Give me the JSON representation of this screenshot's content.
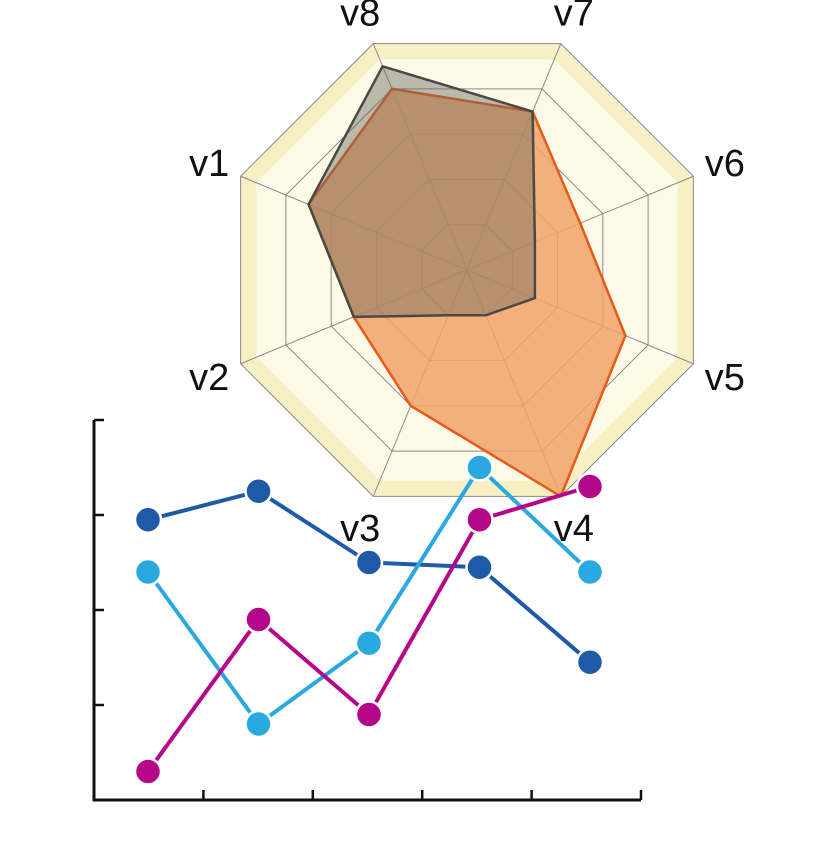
{
  "chart_data": [
    {
      "type": "radar",
      "axes": [
        "v1",
        "v2",
        "v3",
        "v4",
        "v5",
        "v6",
        "v7",
        "v8"
      ],
      "rmax": 5,
      "rings": 5,
      "grid": true,
      "colors": {
        "grid_line": "#8a8a8a",
        "band_fill": "#fdfbe8",
        "band_edge": "#f7f0c4"
      },
      "series": [
        {
          "values": [
            3.5,
            2.5,
            3.0,
            5.0,
            3.5,
            2.5,
            3.5,
            4.0
          ],
          "fill": "#f2a268",
          "stroke": "#e65a1a",
          "fill_opacity": 0.85
        },
        {
          "values": [
            3.5,
            2.5,
            1.0,
            1.0,
            1.5,
            1.5,
            3.5,
            4.5
          ],
          "fill": "#6b6b60",
          "stroke": "#4a4a44",
          "fill_opacity": 0.45
        }
      ]
    },
    {
      "type": "line",
      "x": [
        1,
        2,
        3,
        4,
        5
      ],
      "ylim": [
        0,
        4
      ],
      "y_ticks": 4,
      "x_ticks": 5,
      "colors": {
        "axis": "#111111"
      },
      "series": [
        {
          "values": [
            2.95,
            3.25,
            2.5,
            2.45,
            1.45
          ],
          "color": "#1f5aa6"
        },
        {
          "values": [
            2.4,
            0.8,
            1.65,
            3.5,
            2.4
          ],
          "color": "#2aa8e0"
        },
        {
          "values": [
            0.3,
            1.9,
            0.9,
            2.95,
            3.3
          ],
          "color": "#b5068a"
        }
      ]
    }
  ]
}
